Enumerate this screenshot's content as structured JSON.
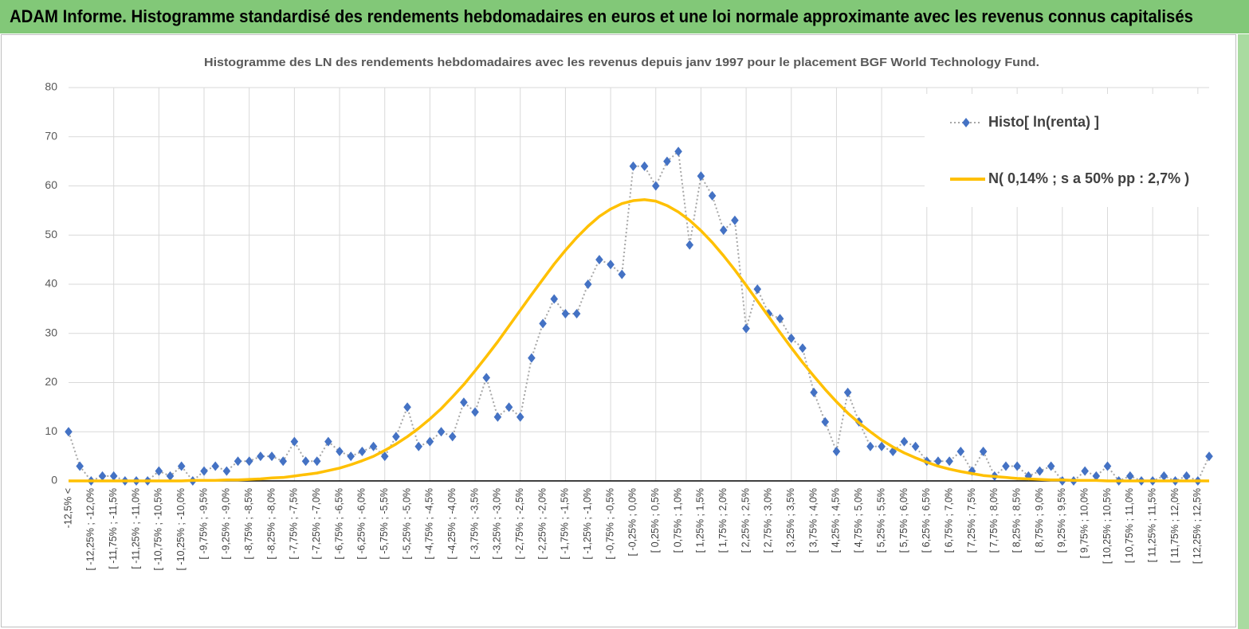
{
  "page_title": "ADAM Informe. Histogramme standardisé des rendements hebdomadaires en euros et une loi normale approximante avec les revenus connus capitalisés",
  "chart_data": {
    "type": "line",
    "title": "Histogramme  des LN des rendements hebdomadaires avec les revenus depuis janv 1997 pour le placement BGF World  Technology Fund.",
    "categories": [
      "-12,5% <",
      null,
      "[ -12,25% ; -12,0%",
      null,
      "[ -11,75% ; -11,5%",
      null,
      "[ -11,25% ; -11,0%",
      null,
      "[ -10,75% ; -10,5%",
      null,
      "[ -10,25% ; -10,0%",
      null,
      "[ -9,75% ; -9,5%",
      null,
      "[ -9,25% ; -9,0%",
      null,
      "[ -8,75% ; -8,5%",
      null,
      "[ -8,25% ; -8,0%",
      null,
      "[ -7,75% ; -7,5%",
      null,
      "[ -7,25% ; -7,0%",
      null,
      "[ -6,75% ; -6,5%",
      null,
      "[ -6,25% ; -6,0%",
      null,
      "[ -5,75% ; -5,5%",
      null,
      "[ -5,25% ; -5,0%",
      null,
      "[ -4,75% ; -4,5%",
      null,
      "[ -4,25% ; -4,0%",
      null,
      "[ -3,75% ; -3,5%",
      null,
      "[ -3,25% ; -3,0%",
      null,
      "[ -2,75% ; -2,5%",
      null,
      "[ -2,25% ; -2,0%",
      null,
      "[ -1,75% ; -1,5%",
      null,
      "[ -1,25% ; -1,0%",
      null,
      "[ -0,75% ; -0,5%",
      null,
      "[ -0,25% ; 0,0%",
      null,
      "[ 0,25% ; 0,5%",
      null,
      "[ 0,75% ; 1,0%",
      null,
      "[ 1,25% ; 1,5%",
      null,
      "[ 1,75% ; 2,0%",
      null,
      "[ 2,25% ; 2,5%",
      null,
      "[ 2,75% ; 3,0%",
      null,
      "[ 3,25% ; 3,5%",
      null,
      "[ 3,75% ; 4,0%",
      null,
      "[ 4,25% ; 4,5%",
      null,
      "[ 4,75% ; 5,0%",
      null,
      "[ 5,25% ; 5,5%",
      null,
      "[ 5,75% ; 6,0%",
      null,
      "[ 6,25% ; 6,5%",
      null,
      "[ 6,75% ; 7,0%",
      null,
      "[ 7,25% ; 7,5%",
      null,
      "[ 7,75% ; 8,0%",
      null,
      "[ 8,25% ; 8,5%",
      null,
      "[ 8,75% ; 9,0%",
      null,
      "[ 9,25% ; 9,5%",
      null,
      "[ 9,75% ; 10,0%",
      null,
      "[ 10,25% ; 10,5%",
      null,
      "[ 10,75% ; 11,0%",
      null,
      "[ 11,25% ; 11,5%",
      null,
      "[ 11,75% ; 12,0%",
      null,
      "[ 12,25% ; 12,5%",
      null
    ],
    "series": [
      {
        "name": "Histo[ ln(renta) ]",
        "color": "#4472c4",
        "line_color": "#a6a6a6",
        "values": [
          10,
          3,
          0,
          1,
          1,
          0,
          0,
          0,
          2,
          1,
          3,
          0,
          2,
          3,
          2,
          4,
          4,
          5,
          5,
          4,
          8,
          4,
          4,
          8,
          6,
          5,
          6,
          7,
          5,
          9,
          15,
          7,
          8,
          10,
          9,
          16,
          14,
          21,
          13,
          15,
          13,
          25,
          32,
          37,
          34,
          34,
          40,
          45,
          44,
          42,
          64,
          64,
          60,
          65,
          67,
          48,
          62,
          58,
          51,
          53,
          31,
          39,
          34,
          33,
          29,
          27,
          18,
          12,
          6,
          18,
          12,
          7,
          7,
          6,
          8,
          7,
          4,
          4,
          4,
          6,
          2,
          6,
          1,
          3,
          3,
          1,
          2,
          3,
          0,
          0,
          2,
          1,
          3,
          0,
          1,
          0,
          0,
          1,
          0,
          1,
          0,
          5
        ]
      },
      {
        "name": "N( 0,14% ; s a 50% pp : 2,7% )",
        "color": "#ffc000",
        "values": [
          0,
          0,
          0,
          0,
          0,
          0,
          0,
          0,
          0,
          0,
          0,
          0.1,
          0.1,
          0.1,
          0.2,
          0.2,
          0.3,
          0.4,
          0.6,
          0.7,
          1.0,
          1.3,
          1.6,
          2.1,
          2.6,
          3.3,
          4.1,
          5.0,
          6.2,
          7.5,
          9.0,
          10.7,
          12.6,
          14.7,
          17.1,
          19.6,
          22.4,
          25.3,
          28.3,
          31.5,
          34.7,
          37.9,
          41.0,
          44.1,
          46.9,
          49.5,
          51.8,
          53.8,
          55.3,
          56.4,
          57.0,
          57.2,
          56.9,
          56.0,
          54.7,
          53.0,
          50.9,
          48.5,
          45.8,
          42.9,
          39.8,
          36.6,
          33.4,
          30.2,
          27.1,
          24.1,
          21.3,
          18.6,
          16.1,
          13.8,
          11.8,
          10.0,
          8.3,
          6.9,
          5.7,
          4.7,
          3.8,
          3.0,
          2.4,
          1.9,
          1.5,
          1.1,
          0.9,
          0.7,
          0.5,
          0.4,
          0.3,
          0.2,
          0.2,
          0.1,
          0.1,
          0.1,
          0,
          0,
          0,
          0,
          0,
          0,
          0,
          0,
          0,
          0
        ]
      }
    ],
    "ylim": [
      0,
      80
    ],
    "yticks": [
      0,
      10,
      20,
      30,
      40,
      50,
      60,
      70,
      80
    ],
    "grid": true,
    "legend": "top-right"
  }
}
